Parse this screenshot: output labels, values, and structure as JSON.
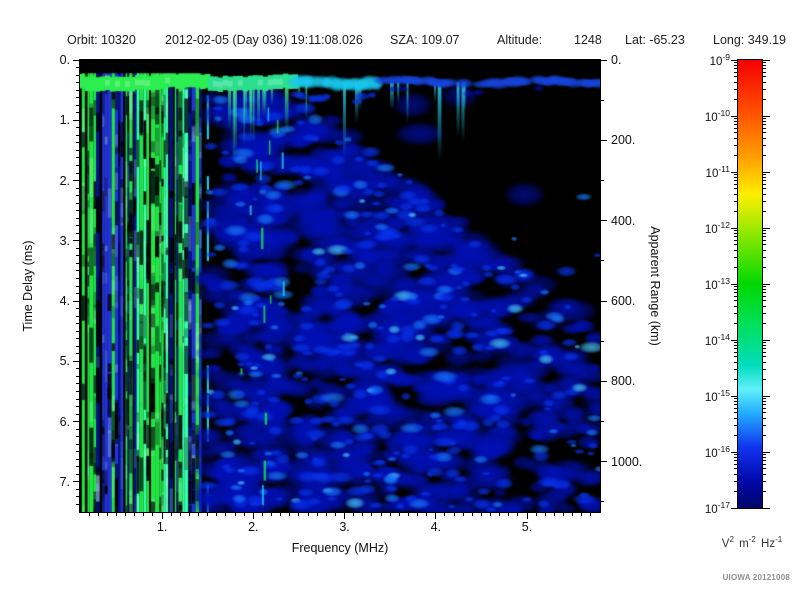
{
  "header": {
    "orbit": "Orbit: 10320",
    "datetime": "2012-02-05 (Day 036) 19:11:08.026",
    "sza": "SZA: 109.07",
    "altitude_label": "Altitude:",
    "altitude_value": "1248",
    "lat": "Lat: -65.23",
    "long": "Long: 349.19"
  },
  "attribution": "UIOWA 20121008",
  "chart_data": {
    "type": "heatmap",
    "subtype": "radar-sounder-ionogram-spectrogram",
    "xlabel": "Frequency (MHz)",
    "ylabel": "Time Delay (ms)",
    "y2label": "Apparent Range (km)",
    "xlim": [
      0.1,
      5.8
    ],
    "ylim": [
      0,
      7.5
    ],
    "y2lim": [
      0,
      1125
    ],
    "grid": false,
    "xtick_values": [
      1,
      2,
      3,
      4,
      5
    ],
    "xtick_labels": [
      "1.",
      "2.",
      "3.",
      "4.",
      "5."
    ],
    "xtick_minor_step": 0.1,
    "ytick_values": [
      0,
      1,
      2,
      3,
      4,
      5,
      6,
      7
    ],
    "ytick_labels": [
      "0.",
      "1.",
      "2.",
      "3.",
      "4.",
      "5.",
      "6.",
      "7."
    ],
    "ytick_minor_step": 0.125,
    "y2tick_values": [
      0,
      200,
      400,
      600,
      800,
      1000
    ],
    "y2tick_labels": [
      "0.",
      "200.",
      "400.",
      "600.",
      "800.",
      "1000."
    ],
    "y2tick_minor_step": 100,
    "colorbar": {
      "scale": "log",
      "max": "1e-9",
      "min": "1e-17",
      "label_base": "10",
      "tick_exponents": [
        "-9",
        "-10",
        "-11",
        "-12",
        "-13",
        "-14",
        "-15",
        "-16",
        "-17"
      ],
      "units_parts": [
        [
          "V",
          "2"
        ],
        [
          "m",
          "-2"
        ],
        [
          "Hz",
          "-1"
        ]
      ],
      "gradient_stops": [
        [
          0,
          "#f40000"
        ],
        [
          0.1,
          "#ff4400"
        ],
        [
          0.21,
          "#ff9900"
        ],
        [
          0.3,
          "#ffee00"
        ],
        [
          0.39,
          "#8ce800"
        ],
        [
          0.5,
          "#00d800"
        ],
        [
          0.6,
          "#00e066"
        ],
        [
          0.68,
          "#00dcbb"
        ],
        [
          0.735,
          "#5ff0fa"
        ],
        [
          0.79,
          "#22aaff"
        ],
        [
          0.865,
          "#1133ee"
        ],
        [
          0.94,
          "#0008aa"
        ],
        [
          1,
          "#000566"
        ]
      ]
    },
    "spectrogram": {
      "seed": 20121008,
      "background": "#000000",
      "blank_top_ms": 0.22,
      "trace": {
        "center_ms": 0.37,
        "halfwidth_ms": 0.12,
        "segments": [
          {
            "f": [
              0.1,
              1.5
            ],
            "color": "#2cee50",
            "style": "solid"
          },
          {
            "f": [
              1.5,
              2.45
            ],
            "color": "#2adf8e",
            "style": "solid"
          },
          {
            "f": [
              2.45,
              3.4
            ],
            "color": "#18c8ee",
            "style": "blobby"
          },
          {
            "f": [
              3.4,
              5.8
            ],
            "color": "#1544dd",
            "style": "dashed"
          }
        ]
      },
      "harmonic_stripes": {
        "f_range": [
          0.12,
          1.42
        ],
        "sparse_f_range": [
          1.42,
          1.78
        ],
        "palette": [
          "#22e544",
          "#35ffa8",
          "#23c8ee",
          "#2233d8",
          "#001488"
        ]
      },
      "echo_cloud": {
        "f_range": [
          1.5,
          5.8
        ],
        "onset_base_ms": 0.55,
        "onset_knee_mhz": 2.5,
        "onset_slope_ms_per_mhz": 1.2,
        "dark_gap_f": [
          2.33,
          2.46
        ],
        "colors": [
          "#0010b4",
          "#0833ee",
          "#1878ff",
          "#48c8ff"
        ]
      },
      "drips": {
        "f_range": [
          1.55,
          4.35
        ],
        "count": 26,
        "max_len_ms": 1.2
      },
      "green_dashes": {
        "f_range": [
          1.78,
          2.35
        ],
        "count": 15
      }
    }
  }
}
